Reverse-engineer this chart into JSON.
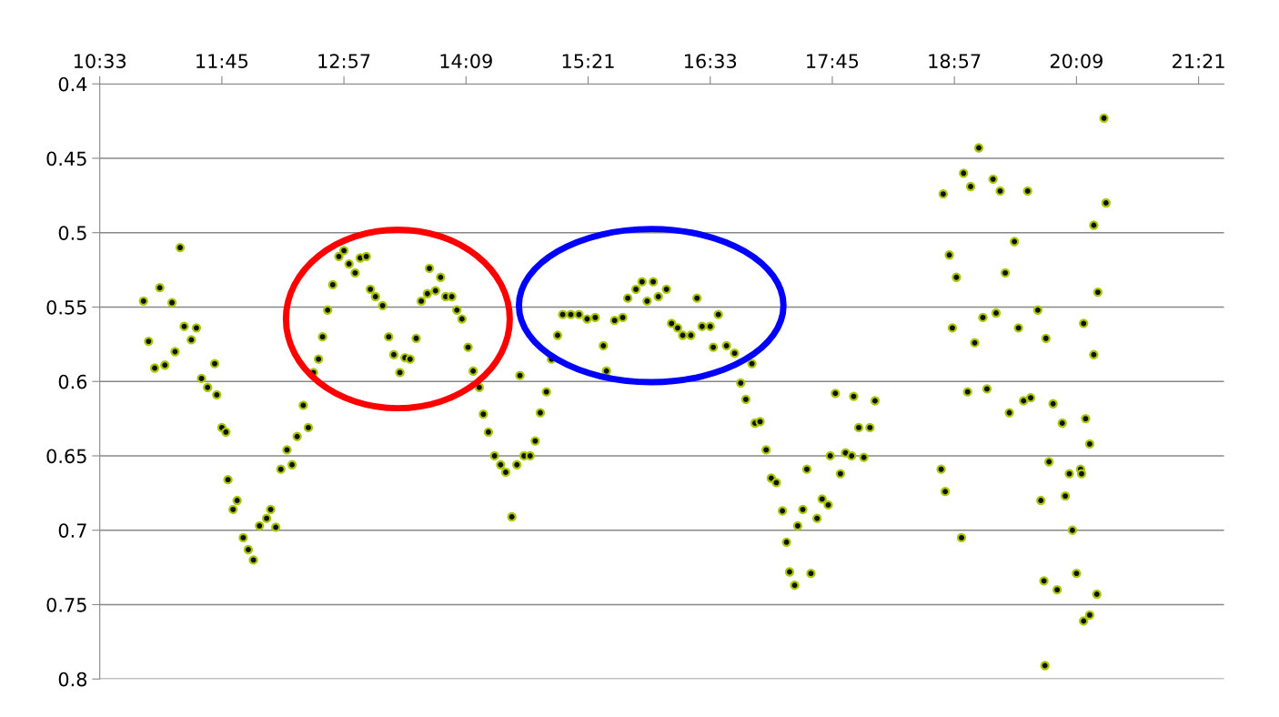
{
  "chart_data": {
    "type": "scatter",
    "xlim": [
      10.55,
      21.6
    ],
    "xticks": [
      {
        "value": 10.55,
        "label": "10:33"
      },
      {
        "value": 11.75,
        "label": "11:45"
      },
      {
        "value": 12.95,
        "label": "12:57"
      },
      {
        "value": 14.15,
        "label": "14:09"
      },
      {
        "value": 15.35,
        "label": "15:21"
      },
      {
        "value": 16.55,
        "label": "16:33"
      },
      {
        "value": 17.75,
        "label": "17:45"
      },
      {
        "value": 18.95,
        "label": "18:57"
      },
      {
        "value": 20.15,
        "label": "20:09"
      },
      {
        "value": 21.35,
        "label": "21:21"
      }
    ],
    "ylim": [
      0.8,
      0.4
    ],
    "yticks": [
      0.4,
      0.45,
      0.5,
      0.55,
      0.6,
      0.65,
      0.7,
      0.75,
      0.8
    ],
    "grid": "y",
    "marker": "circle",
    "series": [
      {
        "color": "#a8c800",
        "x": [
          10.98,
          11.03,
          11.09,
          11.14,
          11.19,
          11.26,
          11.29,
          11.34,
          11.38,
          11.45,
          11.5,
          11.55,
          11.61,
          11.68,
          11.7,
          11.75,
          11.79,
          11.81,
          11.86,
          11.9,
          11.96,
          12.01,
          12.06,
          12.12,
          12.19,
          12.23,
          12.28,
          12.33,
          12.39,
          12.44,
          12.49,
          12.55,
          12.6,
          12.65,
          12.7,
          12.74,
          12.79,
          12.84,
          12.9,
          12.95,
          13.0,
          13.06,
          13.11,
          13.17,
          13.21,
          13.26,
          13.33,
          13.39,
          13.44,
          13.5,
          13.55,
          13.6,
          13.66,
          13.71,
          13.77,
          13.79,
          13.85,
          13.9,
          13.95,
          14.01,
          14.06,
          14.11,
          14.17,
          14.22,
          14.28,
          14.32,
          14.37,
          14.43,
          14.49,
          14.54,
          14.6,
          14.65,
          14.68,
          14.72,
          14.78,
          14.83,
          14.88,
          14.94,
          14.99,
          15.05,
          15.1,
          15.18,
          15.26,
          15.34,
          15.42,
          15.5,
          15.53,
          15.61,
          15.69,
          15.74,
          15.82,
          15.88,
          15.93,
          15.99,
          16.04,
          16.12,
          16.17,
          16.23,
          16.28,
          16.36,
          16.42,
          16.47,
          16.55,
          16.58,
          16.63,
          16.71,
          16.79,
          16.85,
          16.9,
          16.96,
          16.99,
          17.04,
          17.1,
          17.15,
          17.2,
          17.26,
          17.3,
          17.33,
          17.38,
          17.41,
          17.46,
          17.5,
          17.54,
          17.6,
          17.65,
          17.71,
          17.73,
          17.78,
          17.83,
          17.88,
          17.94,
          17.96,
          18.01,
          18.06,
          18.12,
          18.17,
          18.84,
          18.82,
          18.86,
          18.9,
          18.93,
          18.97,
          19.02,
          19.04,
          19.08,
          19.11,
          19.15,
          19.19,
          19.23,
          19.27,
          19.33,
          19.36,
          19.4,
          19.45,
          19.49,
          19.54,
          19.58,
          19.63,
          19.67,
          19.7,
          19.77,
          19.8,
          19.83,
          19.85,
          19.88,
          19.92,
          19.96,
          20.01,
          20.04,
          20.08,
          20.11,
          20.15,
          20.19,
          19.84,
          20.22,
          20.28,
          20.35,
          20.42,
          20.44,
          20.32,
          20.36,
          20.32,
          20.28,
          20.24,
          20.2,
          20.22
        ],
        "values": [
          0.546,
          0.573,
          0.591,
          0.537,
          0.589,
          0.547,
          0.58,
          0.51,
          0.563,
          0.572,
          0.564,
          0.598,
          0.604,
          0.588,
          0.609,
          0.631,
          0.634,
          0.666,
          0.686,
          0.68,
          0.705,
          0.713,
          0.72,
          0.697,
          0.692,
          0.686,
          0.698,
          0.659,
          0.646,
          0.656,
          0.637,
          0.616,
          0.631,
          0.594,
          0.585,
          0.57,
          0.552,
          0.535,
          0.516,
          0.512,
          0.521,
          0.527,
          0.517,
          0.516,
          0.538,
          0.543,
          0.549,
          0.57,
          0.582,
          0.594,
          0.584,
          0.585,
          0.571,
          0.546,
          0.541,
          0.524,
          0.539,
          0.53,
          0.543,
          0.543,
          0.552,
          0.558,
          0.577,
          0.593,
          0.604,
          0.622,
          0.634,
          0.65,
          0.656,
          0.661,
          0.691,
          0.656,
          0.596,
          0.65,
          0.65,
          0.64,
          0.621,
          0.607,
          0.585,
          0.569,
          0.555,
          0.555,
          0.555,
          0.558,
          0.557,
          0.576,
          0.593,
          0.559,
          0.557,
          0.544,
          0.538,
          0.533,
          0.546,
          0.533,
          0.543,
          0.538,
          0.561,
          0.564,
          0.569,
          0.569,
          0.544,
          0.563,
          0.563,
          0.577,
          0.555,
          0.576,
          0.581,
          0.601,
          0.612,
          0.588,
          0.628,
          0.627,
          0.646,
          0.665,
          0.668,
          0.687,
          0.708,
          0.728,
          0.737,
          0.697,
          0.686,
          0.659,
          0.729,
          0.692,
          0.679,
          0.683,
          0.65,
          0.608,
          0.662,
          0.648,
          0.65,
          0.61,
          0.631,
          0.651,
          0.631,
          0.613,
          0.474,
          0.659,
          0.674,
          0.515,
          0.564,
          0.53,
          0.705,
          0.46,
          0.607,
          0.469,
          0.574,
          0.443,
          0.557,
          0.605,
          0.464,
          0.554,
          0.472,
          0.527,
          0.621,
          0.506,
          0.564,
          0.613,
          0.472,
          0.611,
          0.552,
          0.68,
          0.734,
          0.571,
          0.654,
          0.615,
          0.74,
          0.628,
          0.677,
          0.662,
          0.7,
          0.729,
          0.659,
          0.791,
          0.761,
          0.757,
          0.743,
          0.423,
          0.48,
          0.495,
          0.54,
          0.582,
          0.642,
          0.625,
          0.662,
          0.561
        ]
      }
    ]
  }
}
